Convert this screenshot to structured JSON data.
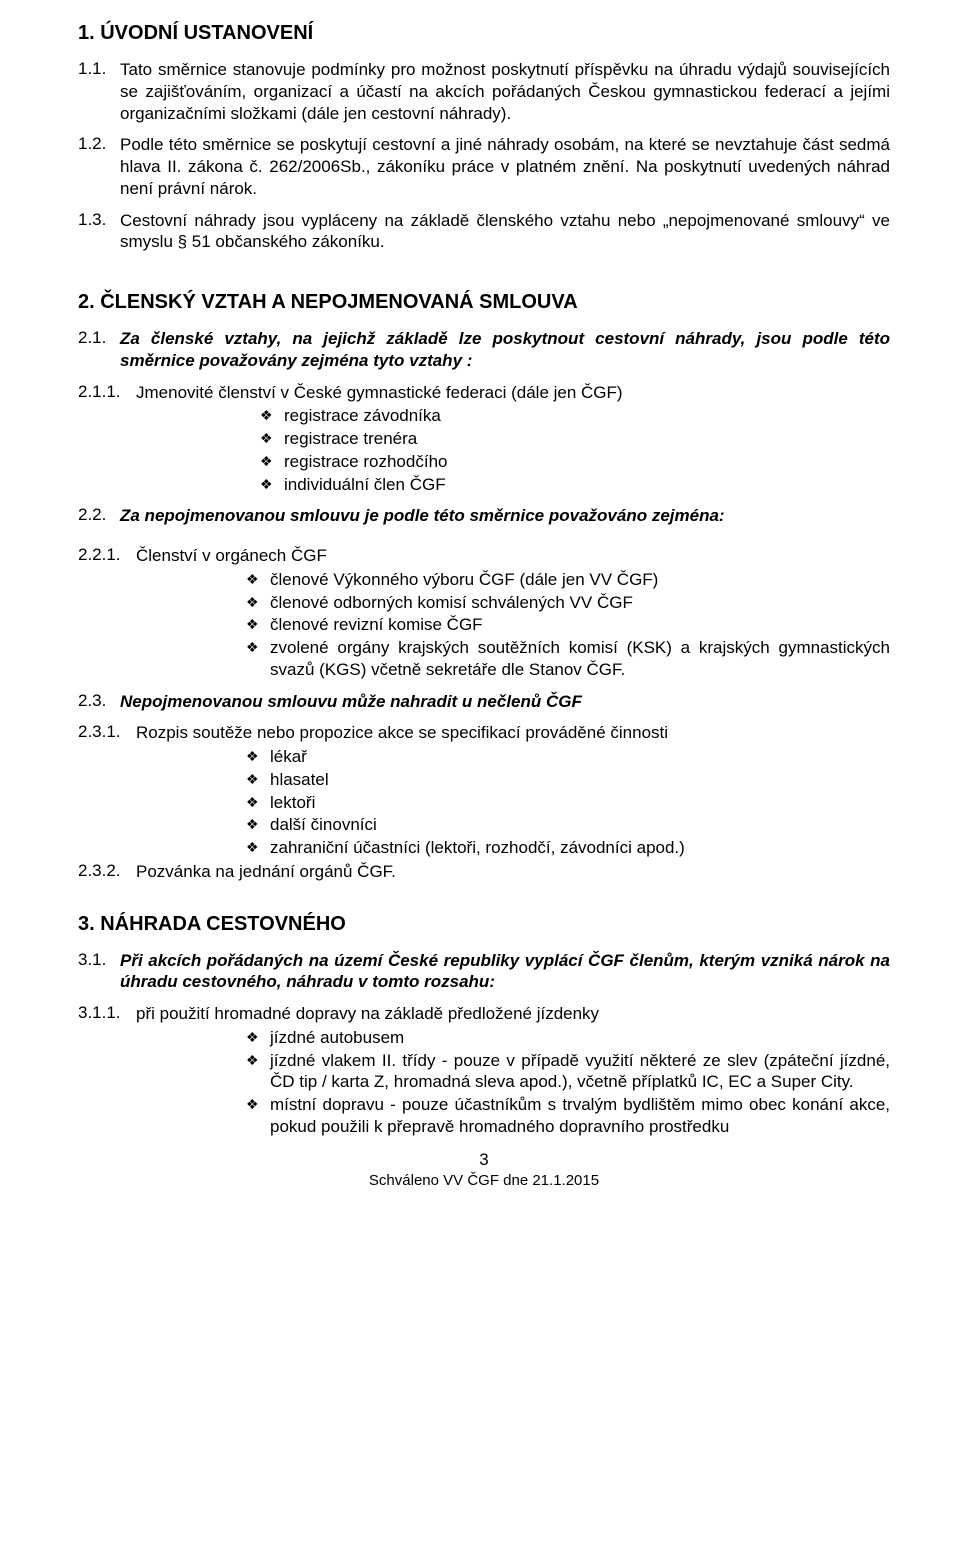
{
  "section1": {
    "heading": "1. ÚVODNÍ USTANOVENÍ",
    "p1_num": "1.1.",
    "p1": "Tato směrnice stanovuje podmínky pro možnost poskytnutí příspěvku na úhradu výdajů souvisejících se zajišťováním, organizací a účastí na akcích pořádaných Českou gymnastickou federací a jejími organizačními složkami (dále jen cestovní náhrady).",
    "p2_num": "1.2.",
    "p2": "Podle této směrnice se poskytují cestovní a jiné náhrady osobám, na které se nevztahuje  část sedmá hlava II. zákona č. 262/2006Sb., zákoníku práce v platném znění. Na poskytnutí uvedených náhrad  není  právní nárok.",
    "p3_num": "1.3.",
    "p3": "Cestovní náhrady jsou vypláceny na základě členského vztahu nebo „nepojmenované smlouvy“ ve smyslu  § 51 občanského zákoníku."
  },
  "section2": {
    "heading": "2. ČLENSKÝ VZTAH A NEPOJMENOVANÁ SMLOUVA",
    "p1_num": "2.1.",
    "p1": "Za členské vztahy, na jejichž základě lze poskytnout cestovní náhrady, jsou podle této směrnice  považovány zejména  tyto vztahy :",
    "p1_1_num": "2.1.1.",
    "p1_1": "Jmenovité členství v České gymnastické federaci (dále jen ČGF)",
    "p1_1_bullets": [
      "registrace  závodníka",
      "registrace trenéra",
      "registrace rozhodčího",
      "individuální člen ČGF"
    ],
    "p2_num": "2.2.",
    "p2": "Za nepojmenovanou smlouvu je podle této směrnice považováno zejména:",
    "p2_1_num": "2.2.1.",
    "p2_1": "Členství v orgánech ČGF",
    "p2_1_bullets": [
      "členové Výkonného výboru ČGF (dále jen VV ČGF)",
      "členové odborných komisí schválených VV ČGF",
      "členové revizní komise ČGF",
      "zvolené orgány krajských soutěžních komisí (KSK) a krajských gymnastických svazů (KGS) včetně sekretáře dle Stanov ČGF."
    ],
    "p3_num": "2.3.",
    "p3": "Nepojmenovanou smlouvu může nahradit u nečlenů ČGF",
    "p3_1_num": "2.3.1.",
    "p3_1": "Rozpis soutěže nebo propozice akce se specifikací prováděné činnosti",
    "p3_1_bullets": [
      "lékař",
      "hlasatel",
      "lektoři",
      "další činovníci",
      "zahraniční účastníci (lektoři, rozhodčí, závodníci apod.)"
    ],
    "p3_2_num": "2.3.2.",
    "p3_2": "Pozvánka na jednání orgánů ČGF."
  },
  "section3": {
    "heading": "3. NÁHRADA CESTOVNÉHO",
    "p1_num": "3.1.",
    "p1": "Při akcích pořádaných  na území České republiky  vyplácí  ČGF členům, kterým vzniká nárok na úhradu cestovného, náhradu v tomto rozsahu:",
    "p1_1_num": "3.1.1.",
    "p1_1": "při použití hromadné dopravy na základě předložené jízdenky",
    "p1_1_bullets": [
      "jízdné autobusem",
      "jízdné vlakem II. třídy  - pouze v případě využití některé ze slev (zpáteční jízdné, ČD tip / karta Z, hromadná sleva apod.), včetně příplatků IC, EC a Super City.",
      "místní dopravu - pouze účastníkům s trvalým bydlištěm mimo obec konání akce, pokud použili k přepravě hromadného dopravního prostředku"
    ]
  },
  "footer": {
    "page_number": "3",
    "approved": "Schváleno VV ČGF dne 21.1.2015"
  }
}
